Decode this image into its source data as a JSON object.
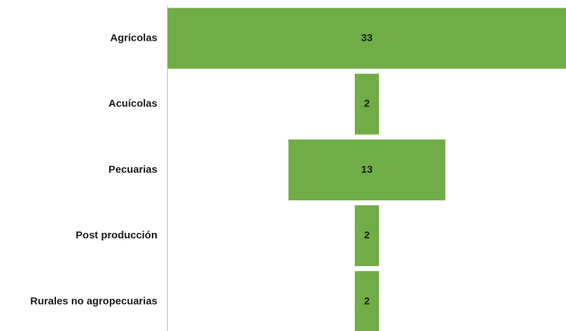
{
  "chart_data": {
    "type": "funnel",
    "categories": [
      "Agrícolas",
      "Acuícolas",
      "Pecuarias",
      "Post producción",
      "Rurales no agropecuarias"
    ],
    "values": [
      33,
      2,
      13,
      2,
      2
    ],
    "color": "#70ad47"
  }
}
